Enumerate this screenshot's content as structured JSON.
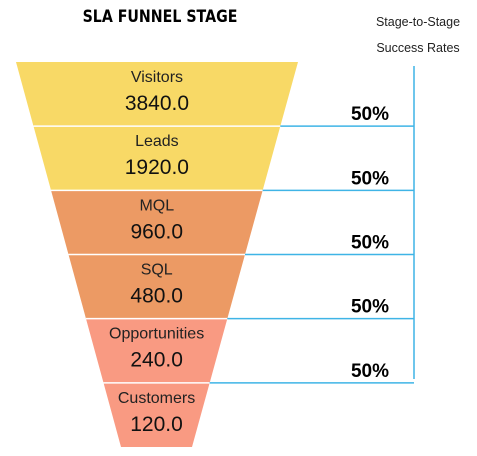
{
  "colors": {
    "connector": "#3fb4e6",
    "divider": "#ffffff",
    "stage_fills": [
      "#f8d966",
      "#f8d966",
      "#ec9a64",
      "#ec9a64",
      "#f99a82",
      "#f99a82"
    ]
  },
  "chart_data": {
    "type": "funnel",
    "title": "SLA FUNNEL STAGE",
    "side_label_line1": "Stage-to-Stage",
    "side_label_line2": "Success Rates",
    "stages": [
      {
        "name": "Visitors",
        "value": 3840.0,
        "value_label": "3840.0"
      },
      {
        "name": "Leads",
        "value": 1920.0,
        "value_label": "1920.0"
      },
      {
        "name": "MQL",
        "value": 960.0,
        "value_label": "960.0"
      },
      {
        "name": "SQL",
        "value": 480.0,
        "value_label": "480.0"
      },
      {
        "name": "Opportunities",
        "value": 240.0,
        "value_label": "240.0"
      },
      {
        "name": "Customers",
        "value": 120.0,
        "value_label": "120.0"
      }
    ],
    "rates": [
      {
        "value": 50,
        "label": "50%"
      },
      {
        "value": 50,
        "label": "50%"
      },
      {
        "value": 50,
        "label": "50%"
      },
      {
        "value": 50,
        "label": "50%"
      },
      {
        "value": 50,
        "label": "50%"
      }
    ]
  }
}
